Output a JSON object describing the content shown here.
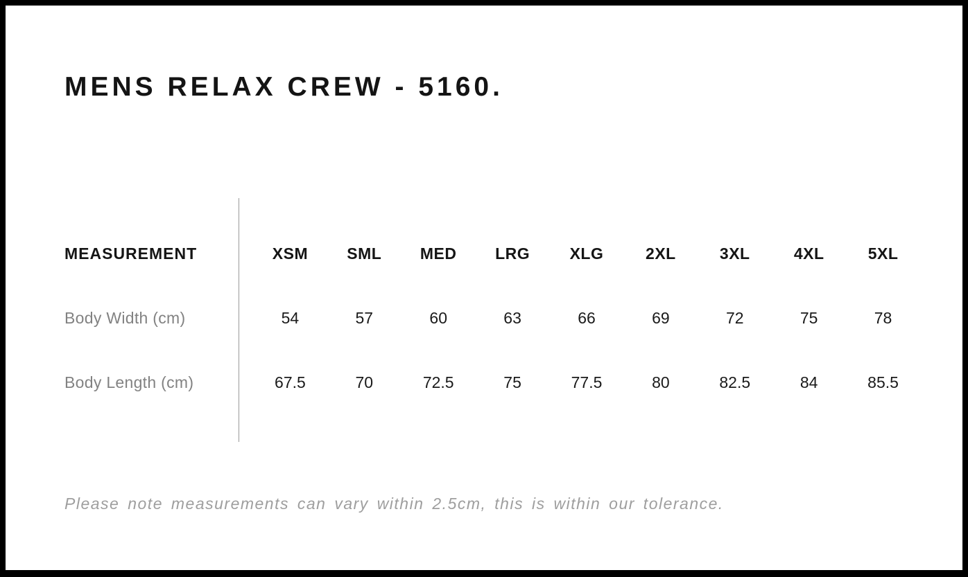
{
  "page": {
    "title": "MENS RELAX CREW - 5160.",
    "note": "Please note measurements can vary within 2.5cm, this is within our tolerance."
  },
  "size_chart": {
    "header_label": "MEASUREMENT",
    "sizes": [
      "XSM",
      "SML",
      "MED",
      "LRG",
      "XLG",
      "2XL",
      "3XL",
      "4XL",
      "5XL"
    ],
    "rows": [
      {
        "label": "Body Width (cm)",
        "values": [
          "54",
          "57",
          "60",
          "63",
          "66",
          "69",
          "72",
          "75",
          "78"
        ]
      },
      {
        "label": "Body Length (cm)",
        "values": [
          "67.5",
          "70",
          "72.5",
          "75",
          "77.5",
          "80",
          "82.5",
          "84",
          "85.5"
        ]
      }
    ]
  },
  "chart_data": {
    "type": "table",
    "title": "MENS RELAX CREW - 5160.",
    "columns": [
      "MEASUREMENT",
      "XSM",
      "SML",
      "MED",
      "LRG",
      "XLG",
      "2XL",
      "3XL",
      "4XL",
      "5XL"
    ],
    "rows": [
      [
        "Body Width (cm)",
        54,
        57,
        60,
        63,
        66,
        69,
        72,
        75,
        78
      ],
      [
        "Body Length (cm)",
        67.5,
        70,
        72.5,
        75,
        77.5,
        80,
        82.5,
        84,
        85.5
      ]
    ]
  },
  "colors": {
    "frame_border": "#000000",
    "title_text": "#141414",
    "table_values_text": "#1a1a1a",
    "row_label_text": "#828282",
    "divider_line": "#999999",
    "note_text": "#9e9e9e",
    "background": "#ffffff"
  }
}
